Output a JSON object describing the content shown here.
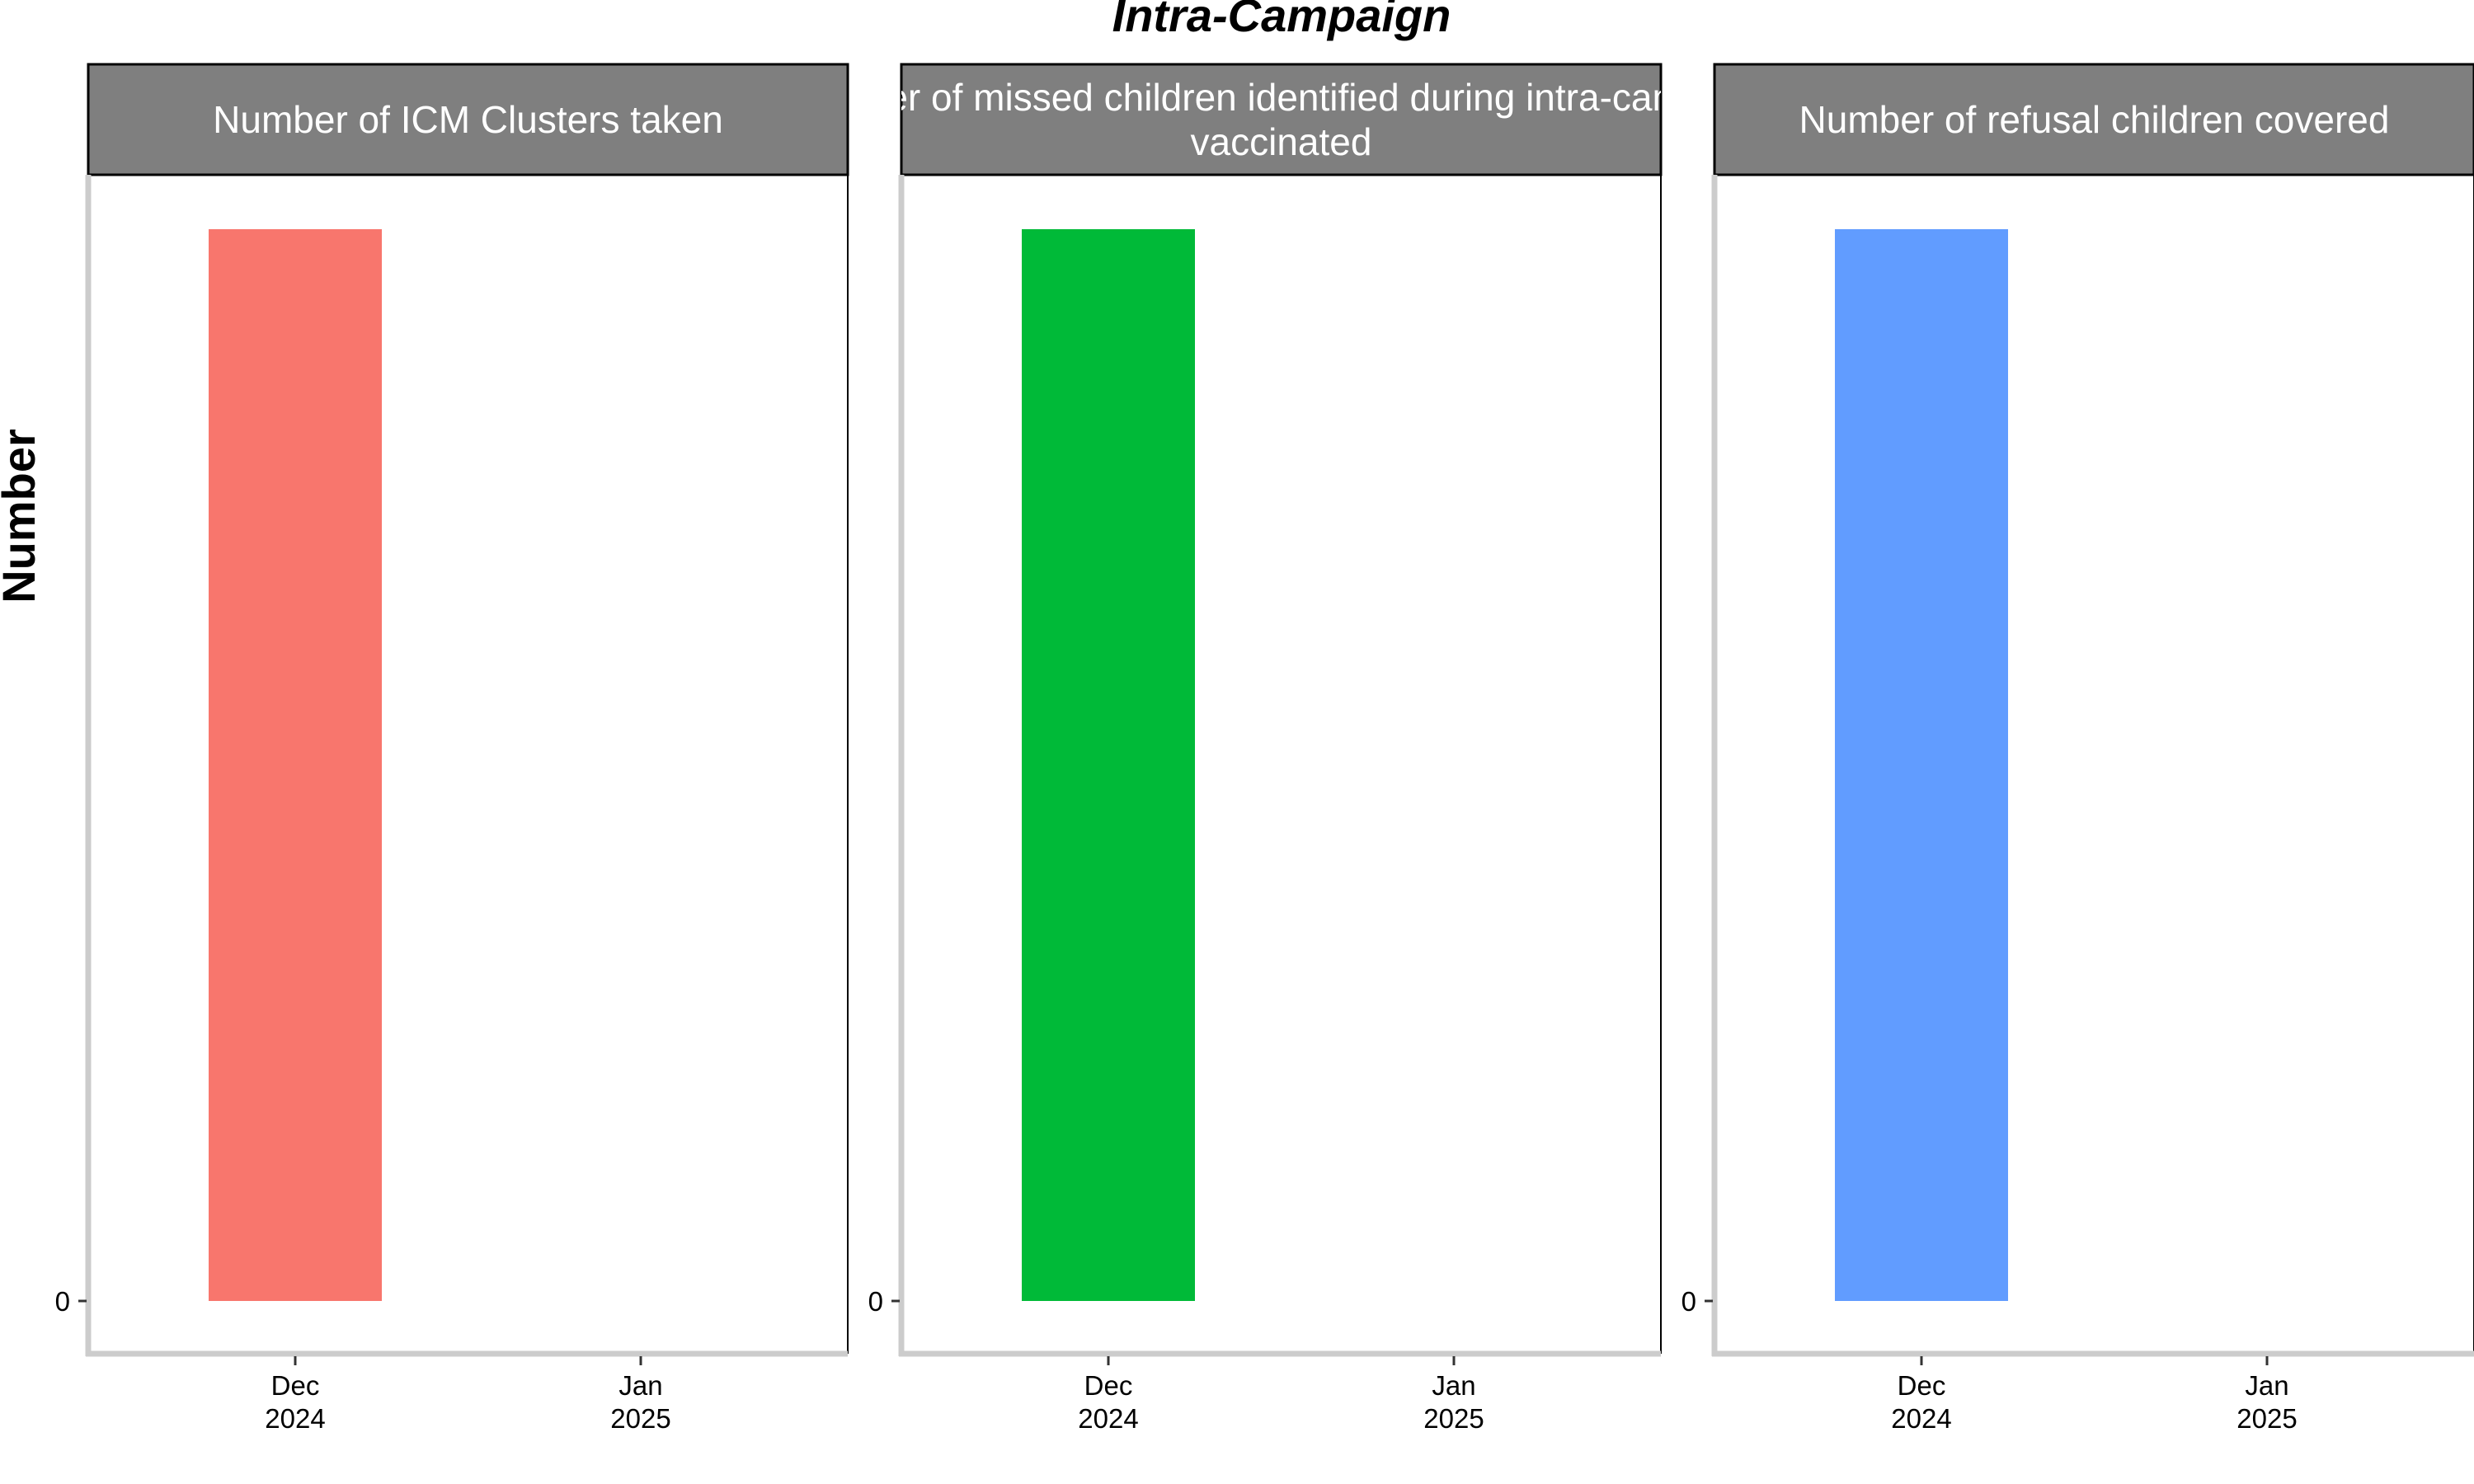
{
  "chart_data": {
    "type": "bar",
    "title": "Intra-Campaign",
    "ylabel": "Number",
    "y_ticks": [
      "0"
    ],
    "x_ticks": [
      {
        "month": "Dec",
        "year": "2024"
      },
      {
        "month": "Jan",
        "year": "2025"
      }
    ],
    "grid": false,
    "legend": "none",
    "panels": [
      {
        "strip": [
          "Number of ICM Clusters taken"
        ],
        "color": "#F8766D",
        "categories": [
          "Dec 2024"
        ],
        "values": [
          1
        ]
      },
      {
        "strip": [
          "Number of missed children identified during intra-campaign",
          "vaccinated"
        ],
        "color": "#00BA38",
        "categories": [
          "Dec 2024"
        ],
        "values": [
          1
        ]
      },
      {
        "strip": [
          "Number of refusal children covered"
        ],
        "color": "#619CFF",
        "categories": [
          "Dec 2024"
        ],
        "values": [
          1
        ]
      }
    ]
  }
}
